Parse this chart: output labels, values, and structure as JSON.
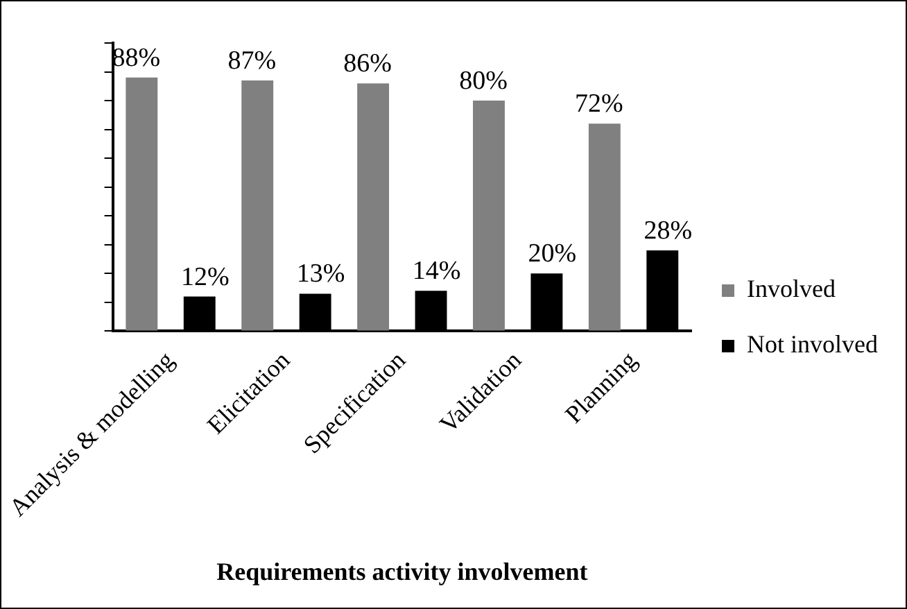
{
  "chart_data": {
    "type": "bar",
    "xlabel": "Requirements activity involvement",
    "categories": [
      "Analysis & modelling",
      "Elicitation",
      "Specification",
      "Validation",
      "Planning"
    ],
    "series": [
      {
        "name": "Involved",
        "color": "#808080",
        "values": [
          88,
          87,
          86,
          80,
          72
        ],
        "value_labels": [
          "88%",
          "87%",
          "86%",
          "80%",
          "72%"
        ]
      },
      {
        "name": "Not involved",
        "color": "#000000",
        "values": [
          12,
          13,
          14,
          20,
          28
        ],
        "value_labels": [
          "12%",
          "13%",
          "14%",
          "20%",
          "28%"
        ]
      }
    ],
    "ylim": [
      0,
      100
    ],
    "yticks": [
      {
        "value": 0,
        "label": null
      },
      {
        "value": 10,
        "label": null
      },
      {
        "value": 20,
        "label": null
      },
      {
        "value": 30,
        "label": null
      },
      {
        "value": 40,
        "label": null
      },
      {
        "value": 50,
        "label": null
      },
      {
        "value": 60,
        "label": null
      },
      {
        "value": 70,
        "label": null
      },
      {
        "value": 80,
        "label": null
      },
      {
        "value": 90,
        "label": null
      },
      {
        "value": 100,
        "label": null
      }
    ],
    "grid": false,
    "legend": "right"
  }
}
